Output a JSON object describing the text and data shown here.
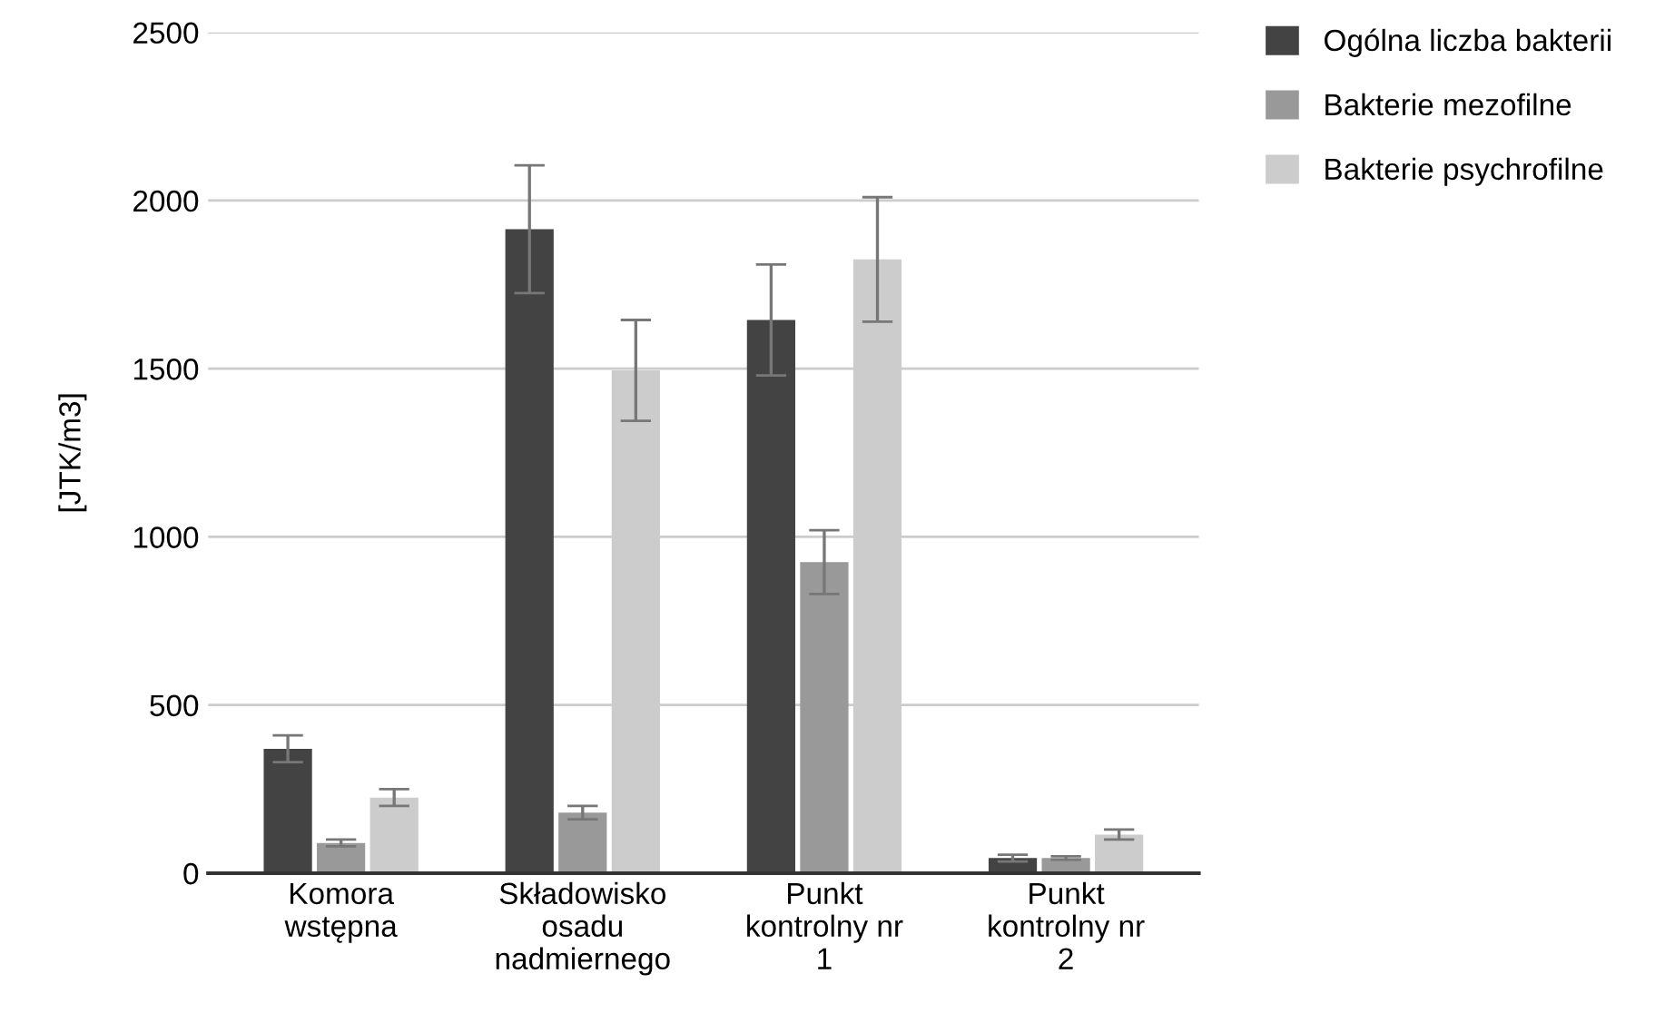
{
  "chart_data": {
    "type": "bar",
    "ylabel": "[JTK/m3]",
    "categories": [
      "Komora\nwstępna",
      "Składowisko\nosadu\nnadmiernego",
      "Punkt\nkontrolny nr\n1",
      "Punkt\nkontrolny nr\n2"
    ],
    "series": [
      {
        "name": "Ogólna liczba bakterii",
        "color": "#434343",
        "values": [
          370,
          1915,
          1645,
          45
        ],
        "errors": [
          40,
          190,
          165,
          10
        ]
      },
      {
        "name": "Bakterie mezofilne",
        "color": "#999999",
        "values": [
          90,
          180,
          925,
          45
        ],
        "errors": [
          10,
          20,
          95,
          5
        ]
      },
      {
        "name": "Bakterie psychrofilne",
        "color": "#cccccc",
        "values": [
          225,
          1495,
          1825,
          115
        ],
        "errors": [
          25,
          150,
          185,
          15
        ]
      }
    ],
    "ylim": [
      0,
      2500
    ],
    "yticks": [
      0,
      500,
      1000,
      1500,
      2000,
      2500
    ],
    "grid": "y",
    "legend": "top right"
  }
}
